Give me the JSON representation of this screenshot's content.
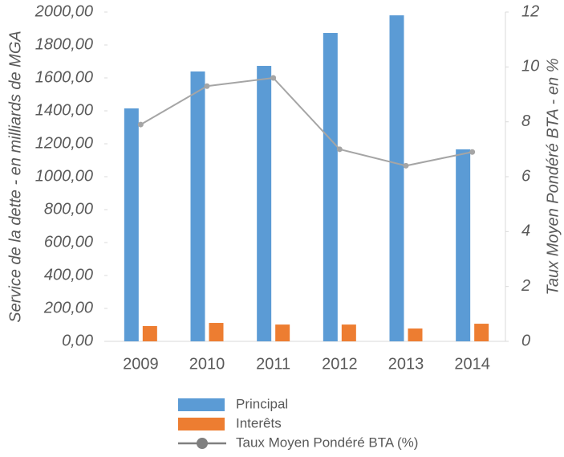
{
  "chart_data": {
    "type": "bar",
    "categories": [
      "2009",
      "2010",
      "2011",
      "2012",
      "2013",
      "2014"
    ],
    "series": [
      {
        "name": "Principal",
        "color": "#5b9bd5",
        "values": [
          1415,
          1639,
          1673,
          1873,
          1980,
          1166
        ]
      },
      {
        "name": "Interêts",
        "color": "#ed7d31",
        "values": [
          93,
          112,
          102,
          102,
          78,
          107
        ]
      },
      {
        "name": "Taux Moyen Pondéré BTA (%)",
        "color": "#a5a5a5",
        "type": "line",
        "axis": "y2",
        "values": [
          7.9,
          9.3,
          9.6,
          7.0,
          6.4,
          6.9
        ]
      }
    ],
    "y_label": "Service de la dette - en milliards de MGA",
    "y2_label": "Taux Moyen Pondéré BTA - en %",
    "ylim": [
      0,
      2000
    ],
    "yticks": [
      {
        "value": 0,
        "label": "0,00"
      },
      {
        "value": 200,
        "label": "200,00"
      },
      {
        "value": 400,
        "label": "400,00"
      },
      {
        "value": 600,
        "label": "600,00"
      },
      {
        "value": 800,
        "label": "800,00"
      },
      {
        "value": 1000,
        "label": "1000,00"
      },
      {
        "value": 1200,
        "label": "1200,00"
      },
      {
        "value": 1400,
        "label": "1400,00"
      },
      {
        "value": 1600,
        "label": "1600,00"
      },
      {
        "value": 1800,
        "label": "1800,00"
      },
      {
        "value": 2000,
        "label": "2000,00"
      }
    ],
    "y2lim": [
      0,
      12
    ],
    "y2ticks": [
      0,
      2,
      4,
      6,
      8,
      10,
      12
    ],
    "legend": "bottom"
  }
}
